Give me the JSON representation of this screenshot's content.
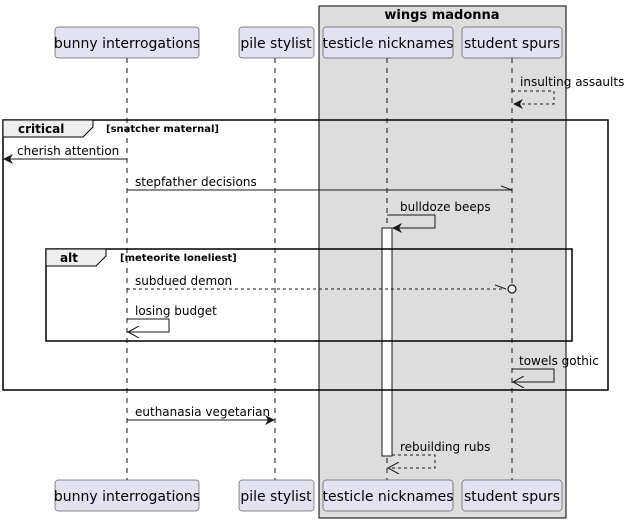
{
  "box": {
    "label": "wings madonna"
  },
  "participants": [
    {
      "id": "p1",
      "label": "bunny interrogations"
    },
    {
      "id": "p2",
      "label": "pile stylist"
    },
    {
      "id": "p3",
      "label": "testicle nicknames"
    },
    {
      "id": "p4",
      "label": "student spurs"
    }
  ],
  "fragments": [
    {
      "id": "critical",
      "kind": "critical",
      "condition": "[snatcher maternal]"
    },
    {
      "id": "alt",
      "kind": "alt",
      "condition": "[meteorite loneliest]"
    }
  ],
  "messages": [
    {
      "id": "m1",
      "from": "student spurs",
      "to": "student spurs",
      "label": "insulting assaults",
      "style": "dashed"
    },
    {
      "id": "m2",
      "from": "bunny interrogations",
      "to": "(outside)",
      "label": "cherish attention",
      "style": "solid"
    },
    {
      "id": "m3",
      "from": "bunny interrogations",
      "to": "student spurs",
      "label": "stepfather decisions",
      "style": "solid-half-head"
    },
    {
      "id": "m4",
      "from": "testicle nicknames",
      "to": "testicle nicknames",
      "label": "bulldoze beeps",
      "style": "solid"
    },
    {
      "id": "m5",
      "from": "bunny interrogations",
      "to": "student spurs",
      "label": "subdued demon",
      "style": "dashed-circle"
    },
    {
      "id": "m6",
      "from": "bunny interrogations",
      "to": "bunny interrogations",
      "label": "losing budget",
      "style": "solid-open-head"
    },
    {
      "id": "m7",
      "from": "student spurs",
      "to": "student spurs",
      "label": "towels gothic",
      "style": "solid-open-head"
    },
    {
      "id": "m8",
      "from": "bunny interrogations",
      "to": "pile stylist",
      "label": "euthanasia vegetarian",
      "style": "solid-half-head"
    },
    {
      "id": "m9",
      "from": "testicle nicknames",
      "to": "testicle nicknames",
      "label": "rebuilding rubs",
      "style": "dashed"
    }
  ]
}
